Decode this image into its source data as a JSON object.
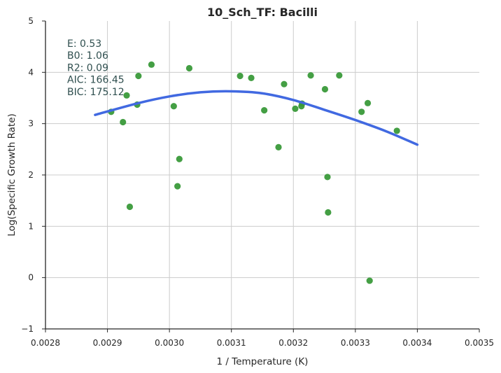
{
  "chart_data": {
    "type": "scatter",
    "title": "10_Sch_TF: Bacilli",
    "xlabel": "1 / Temperature (K)",
    "ylabel": "Log(Specific Growth Rate)",
    "xlim": [
      0.0028,
      0.0035
    ],
    "ylim": [
      -1,
      5
    ],
    "xticks": [
      "0.0028",
      "0.0029",
      "0.0030",
      "0.0031",
      "0.0032",
      "0.0033",
      "0.0034",
      "0.0035"
    ],
    "yticks": [
      "−1",
      "0",
      "1",
      "2",
      "3",
      "4",
      "5"
    ],
    "grid": true,
    "point_color": "#3a9a3a",
    "fit_color": "#4169e1",
    "points": [
      {
        "x": 0.002906,
        "y": 3.23
      },
      {
        "x": 0.002925,
        "y": 3.03
      },
      {
        "x": 0.002931,
        "y": 3.55
      },
      {
        "x": 0.002936,
        "y": 1.38
      },
      {
        "x": 0.002948,
        "y": 3.37
      },
      {
        "x": 0.00295,
        "y": 3.93
      },
      {
        "x": 0.002971,
        "y": 4.15
      },
      {
        "x": 0.003007,
        "y": 3.34
      },
      {
        "x": 0.003013,
        "y": 1.78
      },
      {
        "x": 0.003016,
        "y": 2.31
      },
      {
        "x": 0.003032,
        "y": 4.08
      },
      {
        "x": 0.003114,
        "y": 3.93
      },
      {
        "x": 0.003132,
        "y": 3.89
      },
      {
        "x": 0.003153,
        "y": 3.26
      },
      {
        "x": 0.003176,
        "y": 2.54
      },
      {
        "x": 0.003185,
        "y": 3.77
      },
      {
        "x": 0.003203,
        "y": 3.29
      },
      {
        "x": 0.003213,
        "y": 3.34
      },
      {
        "x": 0.003214,
        "y": 3.39
      },
      {
        "x": 0.003228,
        "y": 3.94
      },
      {
        "x": 0.003251,
        "y": 3.67
      },
      {
        "x": 0.003255,
        "y": 1.96
      },
      {
        "x": 0.003256,
        "y": 1.27
      },
      {
        "x": 0.003274,
        "y": 3.94
      },
      {
        "x": 0.00331,
        "y": 3.23
      },
      {
        "x": 0.00332,
        "y": 3.4
      },
      {
        "x": 0.003323,
        "y": -0.06
      },
      {
        "x": 0.003367,
        "y": 2.86
      }
    ],
    "fit_curve": [
      {
        "x": 0.00288,
        "y": 3.17
      },
      {
        "x": 0.00295,
        "y": 3.4
      },
      {
        "x": 0.003,
        "y": 3.53
      },
      {
        "x": 0.00305,
        "y": 3.61
      },
      {
        "x": 0.0031,
        "y": 3.63
      },
      {
        "x": 0.00315,
        "y": 3.59
      },
      {
        "x": 0.0032,
        "y": 3.46
      },
      {
        "x": 0.00325,
        "y": 3.27
      },
      {
        "x": 0.0033,
        "y": 3.07
      },
      {
        "x": 0.00335,
        "y": 2.85
      },
      {
        "x": 0.0034,
        "y": 2.59
      }
    ],
    "annotations": [
      "E:  0.53",
      "B0:  1.06",
      "R2:  0.09",
      "AIC: 166.45",
      "BIC: 175.12"
    ]
  }
}
